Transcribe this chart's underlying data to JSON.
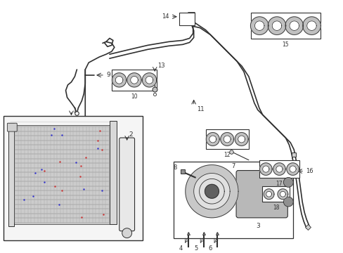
{
  "bg_color": "#ffffff",
  "line_color": "#303030",
  "fig_width": 4.89,
  "fig_height": 3.6,
  "dpi": 100
}
